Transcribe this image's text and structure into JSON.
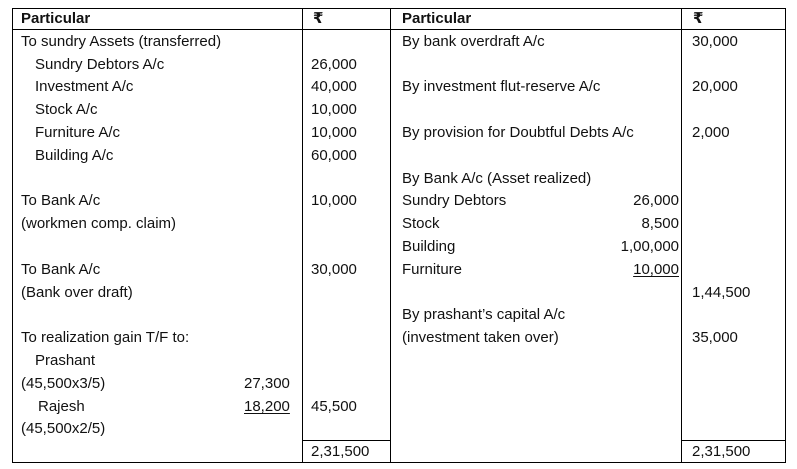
{
  "header": {
    "particular_left": "Particular",
    "amount_left": "₹",
    "particular_right": "Particular",
    "amount_right": "₹"
  },
  "debit": {
    "sundry_assets": "To sundry Assets (transferred)",
    "items": [
      {
        "label": "Sundry Debtors A/c",
        "amount": "26,000"
      },
      {
        "label": "Investment A/c",
        "amount": "40,000"
      },
      {
        "label": "Stock A/c",
        "amount": "10,000"
      },
      {
        "label": "Furniture A/c",
        "amount": "10,000"
      },
      {
        "label": "Building A/c",
        "amount": "60,000"
      }
    ],
    "bank_workmen": {
      "line1": "To Bank A/c",
      "line2": "(workmen comp. claim)",
      "amount": "10,000"
    },
    "bank_overdraft": {
      "line1": "To Bank A/c",
      "line2": "(Bank over draft)",
      "amount": "30,000"
    },
    "realization": {
      "heading": "To realization gain T/F to:",
      "prashant": "Prashant",
      "prashant_calc": "(45,500x3/5)",
      "prashant_amount": "27,300",
      "rajesh": "Rajesh",
      "rajesh_amount": "18,200",
      "rajesh_calc": "(45,500x2/5)",
      "total": "45,500"
    },
    "grand_total": "2,31,500"
  },
  "credit": {
    "bank_overdraft": {
      "label": "By bank overdraft A/c",
      "amount": "30,000"
    },
    "investment_reserve": {
      "label": "By investment flut-reserve A/c",
      "amount": "20,000"
    },
    "provision": {
      "label": "By provision for Doubtful Debts A/c",
      "amount": "2,000"
    },
    "bank_realized": {
      "heading": "By Bank A/c (Asset realized)",
      "items": [
        {
          "label": "Sundry Debtors",
          "amount": "26,000"
        },
        {
          "label": "Stock",
          "amount": "8,500"
        },
        {
          "label": "Building",
          "amount": "1,00,000"
        },
        {
          "label": "Furniture",
          "amount": "10,000"
        }
      ],
      "total": "1,44,500"
    },
    "capital": {
      "line1": "By prashant’s capital A/c",
      "line2": "(investment taken over)",
      "amount": "35,000"
    },
    "grand_total": "2,31,500"
  }
}
